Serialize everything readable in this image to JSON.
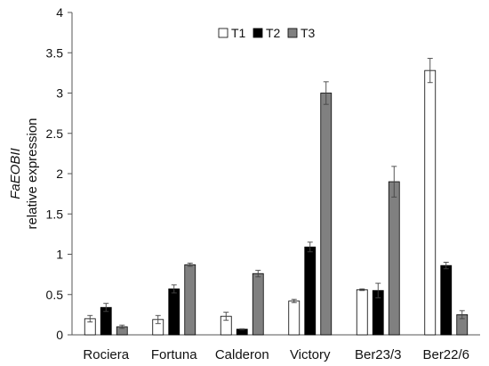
{
  "chart_data": {
    "type": "bar",
    "categories": [
      "Rociera",
      "Fortuna",
      "Calderon",
      "Victory",
      "Ber23/3",
      "Ber22/6"
    ],
    "series": [
      {
        "name": "T1",
        "values": [
          0.2,
          0.19,
          0.23,
          0.42,
          0.56,
          3.28
        ],
        "errors": [
          0.04,
          0.05,
          0.05,
          0.02,
          0.01,
          0.15
        ],
        "color": "#ffffff"
      },
      {
        "name": "T2",
        "values": [
          0.34,
          0.57,
          0.07,
          1.09,
          0.55,
          0.86
        ],
        "errors": [
          0.05,
          0.05,
          0.005,
          0.06,
          0.09,
          0.04
        ],
        "color": "#000000"
      },
      {
        "name": "T3",
        "values": [
          0.1,
          0.87,
          0.76,
          3.0,
          1.9,
          0.25
        ],
        "errors": [
          0.02,
          0.02,
          0.04,
          0.14,
          0.19,
          0.05
        ],
        "color": "#808080"
      }
    ],
    "ylabel_italic": "FaEOBII",
    "ylabel": "relative expression",
    "xlabel": "",
    "title": "",
    "ylim": [
      0,
      4
    ],
    "yticks": [
      "0",
      "0.5",
      "1",
      "1.5",
      "2",
      "2.5",
      "3",
      "3.5",
      "4"
    ],
    "grid": false,
    "legend_position": "top-center"
  }
}
